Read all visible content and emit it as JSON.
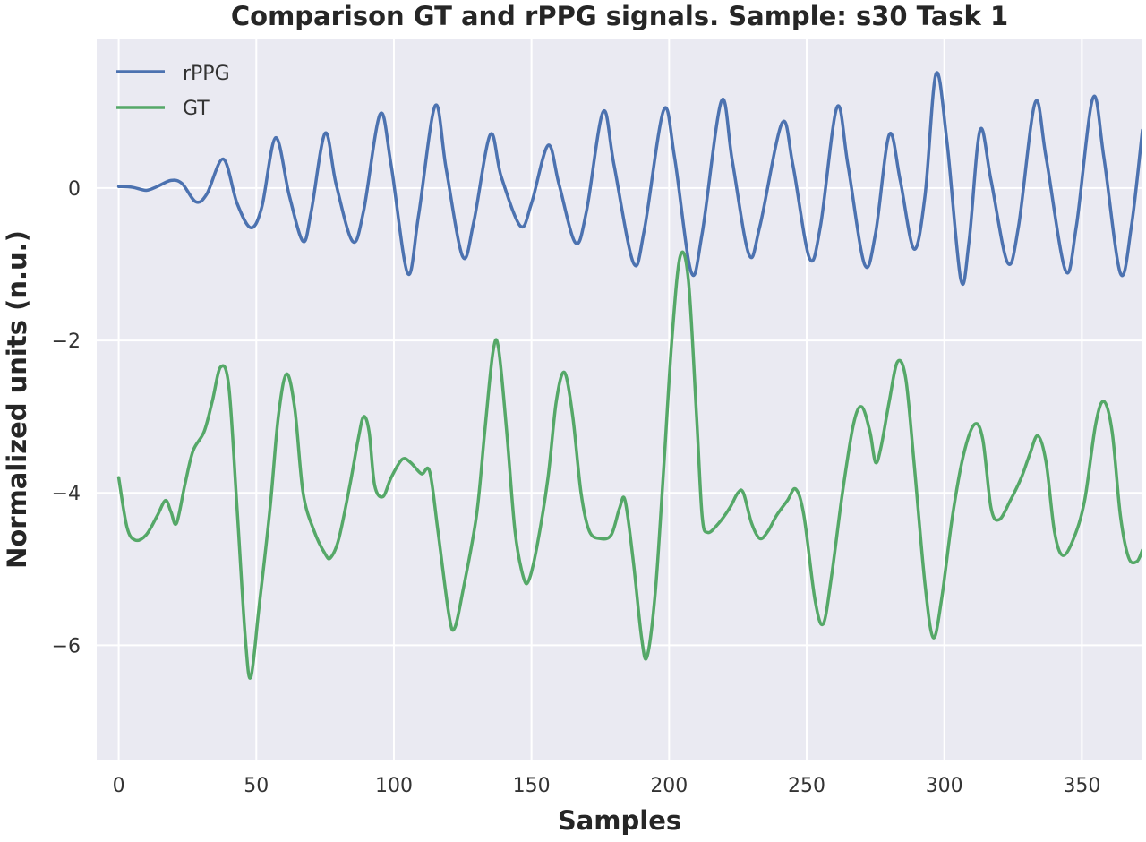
{
  "chart_data": {
    "type": "line",
    "title": "Comparison GT and rPPG signals. Sample: s30 Task 1",
    "xlabel": "Samples",
    "ylabel": "Normalized units (n.u.)",
    "xlim": [
      -8,
      372
    ],
    "ylim": [
      -7.5,
      1.95
    ],
    "xticks": [
      0,
      50,
      100,
      150,
      200,
      250,
      300,
      350
    ],
    "yticks": [
      0,
      -2,
      -4,
      -6
    ],
    "ytick_labels": [
      "0",
      "−2",
      "−4",
      "−6"
    ],
    "grid": true,
    "background": "#EAEAF2",
    "legend_position": "top-left",
    "series": [
      {
        "name": "rPPG",
        "color": "#4C72B0",
        "points": [
          [
            0,
            0.02
          ],
          [
            5,
            0.01
          ],
          [
            10,
            -0.03
          ],
          [
            14,
            0.02
          ],
          [
            19,
            0.1
          ],
          [
            23,
            0.06
          ],
          [
            28,
            -0.18
          ],
          [
            32,
            -0.08
          ],
          [
            38,
            0.38
          ],
          [
            43,
            -0.2
          ],
          [
            48,
            -0.52
          ],
          [
            52,
            -0.25
          ],
          [
            57,
            0.66
          ],
          [
            62,
            -0.1
          ],
          [
            67,
            -0.7
          ],
          [
            70,
            -0.3
          ],
          [
            75,
            0.72
          ],
          [
            79,
            0.05
          ],
          [
            85,
            -0.7
          ],
          [
            89,
            -0.3
          ],
          [
            95,
            0.97
          ],
          [
            99,
            0.3
          ],
          [
            105,
            -1.12
          ],
          [
            109,
            -0.35
          ],
          [
            115,
            1.08
          ],
          [
            119,
            0.25
          ],
          [
            125,
            -0.9
          ],
          [
            129,
            -0.45
          ],
          [
            135,
            0.7
          ],
          [
            139,
            0.15
          ],
          [
            146,
            -0.5
          ],
          [
            150,
            -0.2
          ],
          [
            156,
            0.56
          ],
          [
            160,
            0.05
          ],
          [
            166,
            -0.72
          ],
          [
            170,
            -0.3
          ],
          [
            176,
            1.0
          ],
          [
            180,
            0.3
          ],
          [
            187,
            -0.98
          ],
          [
            191,
            -0.55
          ],
          [
            198,
            1.02
          ],
          [
            202,
            0.4
          ],
          [
            208,
            -1.1
          ],
          [
            212,
            -0.6
          ],
          [
            219,
            1.14
          ],
          [
            223,
            0.35
          ],
          [
            229,
            -0.87
          ],
          [
            233,
            -0.5
          ],
          [
            241,
            0.85
          ],
          [
            245,
            0.3
          ],
          [
            251,
            -0.92
          ],
          [
            255,
            -0.5
          ],
          [
            261,
            1.06
          ],
          [
            265,
            0.3
          ],
          [
            271,
            -1.0
          ],
          [
            275,
            -0.6
          ],
          [
            280,
            0.7
          ],
          [
            284,
            0.1
          ],
          [
            289,
            -0.8
          ],
          [
            293,
            -0.1
          ],
          [
            297,
            1.5
          ],
          [
            301,
            0.6
          ],
          [
            306,
            -1.2
          ],
          [
            309,
            -0.7
          ],
          [
            313,
            0.76
          ],
          [
            317,
            0.1
          ],
          [
            323,
            -0.98
          ],
          [
            327,
            -0.5
          ],
          [
            333,
            1.12
          ],
          [
            337,
            0.4
          ],
          [
            344,
            -1.08
          ],
          [
            348,
            -0.5
          ],
          [
            354,
            1.18
          ],
          [
            358,
            0.4
          ],
          [
            364,
            -1.12
          ],
          [
            368,
            -0.5
          ],
          [
            372,
            0.76
          ]
        ]
      },
      {
        "name": "GT",
        "color": "#55A868",
        "points": [
          [
            0,
            -3.8
          ],
          [
            3,
            -4.45
          ],
          [
            6,
            -4.62
          ],
          [
            10,
            -4.55
          ],
          [
            14,
            -4.3
          ],
          [
            17,
            -4.1
          ],
          [
            19,
            -4.25
          ],
          [
            21,
            -4.4
          ],
          [
            24,
            -3.9
          ],
          [
            27,
            -3.45
          ],
          [
            31,
            -3.2
          ],
          [
            34,
            -2.8
          ],
          [
            37,
            -2.35
          ],
          [
            40,
            -2.6
          ],
          [
            43,
            -4.2
          ],
          [
            46,
            -5.9
          ],
          [
            48,
            -6.42
          ],
          [
            51,
            -5.5
          ],
          [
            55,
            -4.2
          ],
          [
            58,
            -3.0
          ],
          [
            61,
            -2.44
          ],
          [
            64,
            -2.9
          ],
          [
            67,
            -4.0
          ],
          [
            71,
            -4.5
          ],
          [
            75,
            -4.8
          ],
          [
            77,
            -4.85
          ],
          [
            80,
            -4.6
          ],
          [
            84,
            -3.9
          ],
          [
            87,
            -3.3
          ],
          [
            89,
            -3.0
          ],
          [
            91,
            -3.2
          ],
          [
            93,
            -3.9
          ],
          [
            96,
            -4.05
          ],
          [
            99,
            -3.8
          ],
          [
            103,
            -3.56
          ],
          [
            106,
            -3.6
          ],
          [
            110,
            -3.75
          ],
          [
            113,
            -3.72
          ],
          [
            116,
            -4.5
          ],
          [
            120,
            -5.6
          ],
          [
            122,
            -5.78
          ],
          [
            125,
            -5.3
          ],
          [
            130,
            -4.3
          ],
          [
            133,
            -3.2
          ],
          [
            136,
            -2.15
          ],
          [
            138,
            -2.1
          ],
          [
            141,
            -3.2
          ],
          [
            144,
            -4.5
          ],
          [
            147,
            -5.1
          ],
          [
            149,
            -5.15
          ],
          [
            152,
            -4.7
          ],
          [
            156,
            -3.8
          ],
          [
            159,
            -2.8
          ],
          [
            162,
            -2.42
          ],
          [
            165,
            -3.0
          ],
          [
            168,
            -4.0
          ],
          [
            171,
            -4.5
          ],
          [
            175,
            -4.6
          ],
          [
            179,
            -4.55
          ],
          [
            182,
            -4.2
          ],
          [
            184,
            -4.1
          ],
          [
            187,
            -4.9
          ],
          [
            190,
            -5.9
          ],
          [
            192,
            -6.15
          ],
          [
            195,
            -5.3
          ],
          [
            198,
            -3.7
          ],
          [
            201,
            -2.0
          ],
          [
            204,
            -0.9
          ],
          [
            207,
            -1.2
          ],
          [
            210,
            -3.0
          ],
          [
            212,
            -4.3
          ],
          [
            214,
            -4.52
          ],
          [
            218,
            -4.4
          ],
          [
            222,
            -4.2
          ],
          [
            225,
            -4.0
          ],
          [
            227,
            -4.0
          ],
          [
            230,
            -4.4
          ],
          [
            233,
            -4.6
          ],
          [
            236,
            -4.5
          ],
          [
            239,
            -4.3
          ],
          [
            243,
            -4.1
          ],
          [
            246,
            -3.95
          ],
          [
            249,
            -4.3
          ],
          [
            253,
            -5.4
          ],
          [
            256,
            -5.72
          ],
          [
            259,
            -5.1
          ],
          [
            263,
            -4.0
          ],
          [
            267,
            -3.1
          ],
          [
            270,
            -2.87
          ],
          [
            273,
            -3.2
          ],
          [
            275,
            -3.6
          ],
          [
            277,
            -3.4
          ],
          [
            280,
            -2.8
          ],
          [
            283,
            -2.28
          ],
          [
            286,
            -2.5
          ],
          [
            289,
            -3.6
          ],
          [
            293,
            -5.2
          ],
          [
            296,
            -5.9
          ],
          [
            299,
            -5.4
          ],
          [
            303,
            -4.3
          ],
          [
            307,
            -3.5
          ],
          [
            311,
            -3.1
          ],
          [
            314,
            -3.3
          ],
          [
            317,
            -4.2
          ],
          [
            320,
            -4.35
          ],
          [
            324,
            -4.1
          ],
          [
            328,
            -3.8
          ],
          [
            331,
            -3.5
          ],
          [
            334,
            -3.25
          ],
          [
            337,
            -3.6
          ],
          [
            340,
            -4.5
          ],
          [
            343,
            -4.82
          ],
          [
            347,
            -4.6
          ],
          [
            351,
            -4.1
          ],
          [
            355,
            -3.1
          ],
          [
            358,
            -2.8
          ],
          [
            361,
            -3.2
          ],
          [
            364,
            -4.3
          ],
          [
            367,
            -4.85
          ],
          [
            370,
            -4.9
          ],
          [
            372,
            -4.75
          ]
        ]
      }
    ]
  }
}
